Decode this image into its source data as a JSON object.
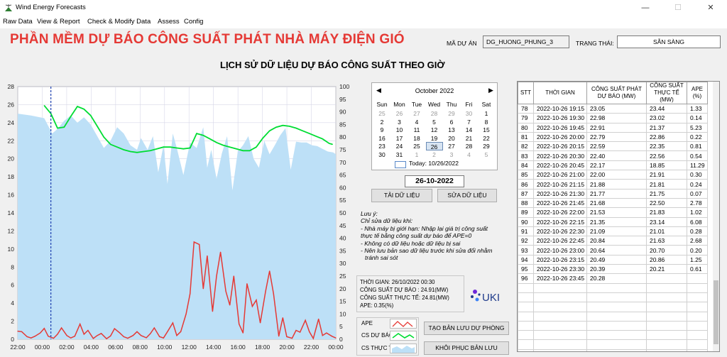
{
  "window": {
    "title": "Wind Energy Forecasts",
    "minimize_glyph": "—",
    "maximize_glyph": "☐",
    "close_glyph": "✕"
  },
  "menu": {
    "items": [
      "Raw Data",
      "View & Report",
      "Check & Modify Data",
      "Assess",
      "Config"
    ]
  },
  "header": {
    "title": "PHẦN MỀM DỰ BÁO CÔNG SUẤT PHÁT NHÀ MÁY ĐIỆN GIÓ",
    "project_label": "MÃ DỰ ÁN",
    "project_value": "DG_HUONG_PHUNG_3",
    "status_label": "TRẠNG THÁI:",
    "status_value": "SẴN SÀNG"
  },
  "chart_data": {
    "type": "line",
    "title": "LỊCH SỬ DỮ LIỆU DỰ BÁO CÔNG SUẤT THEO GIỜ",
    "x_ticks": [
      "22:00",
      "00:00",
      "02:00",
      "04:00",
      "06:00",
      "08:00",
      "10:00",
      "12:00",
      "14:00",
      "16:00",
      "18:00",
      "20:00",
      "22:00",
      "00:00"
    ],
    "x_hours": [
      0,
      24
    ],
    "y_left_range": [
      0,
      28
    ],
    "y_left_ticks": [
      0,
      2,
      4,
      6,
      8,
      10,
      12,
      14,
      16,
      18,
      20,
      22,
      24,
      26,
      28
    ],
    "y_right_range": [
      0,
      100
    ],
    "y_right_ticks": [
      0,
      5,
      10,
      15,
      20,
      25,
      30,
      35,
      40,
      45,
      50,
      55,
      60,
      65,
      70,
      75,
      80,
      85,
      90,
      95,
      100
    ],
    "cursor_hour": 2.5,
    "grid": true,
    "series": [
      {
        "name": "CS THỰC TẾ",
        "axis": "left",
        "color": "#bde0f7",
        "style": "area",
        "x": [
          0,
          1,
          2,
          2.6,
          3,
          3.5,
          4,
          4.5,
          5,
          5.5,
          6,
          6.5,
          7,
          7.5,
          8,
          8.5,
          9,
          9.3,
          9.8,
          10.2,
          10.6,
          11,
          11.3,
          11.7,
          12,
          12.5,
          13,
          13.5,
          14,
          14.3,
          14.6,
          15,
          15.4,
          15.8,
          16.2,
          16.6,
          17,
          17.4,
          17.8,
          18.2,
          18.6,
          19,
          19.4,
          19.8,
          20.2,
          20.6,
          21,
          21.4,
          21.8,
          22.2,
          22.6,
          23,
          23.4,
          23.8,
          24
        ],
        "y": [
          25.0,
          24.8,
          24.5,
          22.8,
          23.3,
          24.2,
          24.8,
          24.0,
          24.6,
          23.8,
          22.5,
          21.2,
          22.0,
          23.5,
          22.8,
          21.5,
          21.0,
          22.3,
          21.0,
          22.5,
          18.5,
          21.5,
          17.2,
          22.8,
          21.2,
          18.2,
          21.8,
          21.2,
          23.5,
          19.0,
          21.0,
          17.8,
          20.6,
          22.5,
          16.5,
          20.8,
          21.5,
          22.5,
          20.0,
          19.0,
          22.0,
          20.5,
          21.5,
          22.6,
          23.4,
          18.8,
          21.9,
          21.8,
          21.8,
          21.5,
          21.4,
          21.1,
          20.8,
          20.7,
          20.5
        ]
      },
      {
        "name": "CS DỰ BÁO",
        "axis": "left",
        "color": "#00dd33",
        "style": "line",
        "x": [
          2,
          2.5,
          3,
          3.5,
          4,
          4.5,
          5,
          5.5,
          6,
          6.5,
          7,
          7.5,
          8,
          8.5,
          9,
          9.5,
          10,
          10.5,
          11,
          11.5,
          12,
          12.5,
          13,
          13.5,
          14,
          14.5,
          15,
          15.5,
          16,
          16.5,
          17,
          17.5,
          18,
          18.5,
          19,
          19.5,
          20,
          20.5,
          21,
          21.5,
          22,
          22.5,
          23,
          23.5,
          23.75
        ],
        "y": [
          25.9,
          25.0,
          23.4,
          23.5,
          24.7,
          25.8,
          25.5,
          24.8,
          23.6,
          22.4,
          21.6,
          21.3,
          21.0,
          20.8,
          20.7,
          20.8,
          20.9,
          21.1,
          21.3,
          21.3,
          21.2,
          21.1,
          21.2,
          22.8,
          22.6,
          22.2,
          21.8,
          21.5,
          21.3,
          21.1,
          20.9,
          20.9,
          21.3,
          22.3,
          23.1,
          23.5,
          23.7,
          23.6,
          23.4,
          23.1,
          22.8,
          22.5,
          22.2,
          21.7,
          21.6
        ]
      },
      {
        "name": "APE",
        "axis": "right",
        "color": "#e53935",
        "style": "line",
        "x": [
          0,
          0.3,
          0.7,
          1.0,
          1.3,
          1.7,
          2.0,
          2.3,
          2.7,
          3.0,
          3.3,
          3.7,
          4.0,
          4.3,
          4.7,
          5.0,
          5.3,
          5.7,
          6.0,
          6.3,
          6.7,
          7.0,
          7.3,
          7.7,
          8.0,
          8.3,
          8.7,
          9.0,
          9.3,
          9.7,
          10.0,
          10.3,
          10.7,
          11.0,
          11.3,
          11.7,
          12.0,
          12.3,
          12.7,
          13.0,
          13.3,
          13.7,
          14.0,
          14.3,
          14.7,
          15.0,
          15.3,
          15.7,
          16.0,
          16.3,
          16.7,
          17.0,
          17.3,
          17.7,
          18.0,
          18.3,
          18.7,
          19.0,
          19.3,
          19.7,
          20.0,
          20.3,
          20.7,
          21.0,
          21.3,
          21.7,
          22.0,
          22.3,
          22.7,
          23.0,
          23.3,
          23.7,
          24.0
        ],
        "y": [
          3.2,
          3.0,
          1.0,
          0.5,
          1.2,
          2.5,
          4.3,
          1.2,
          0.4,
          2.0,
          4.5,
          1.5,
          0.5,
          1.2,
          6.0,
          2.0,
          3.5,
          0.3,
          1.5,
          2.3,
          0.2,
          1.3,
          4.2,
          2.5,
          1.0,
          0.4,
          1.5,
          3.0,
          1.5,
          0.6,
          2.2,
          4.5,
          1.0,
          0.5,
          3.0,
          6.5,
          1.5,
          3.0,
          10.0,
          18.0,
          38.5,
          37.5,
          20.0,
          33.0,
          11.0,
          25.0,
          34.5,
          19.0,
          13.5,
          25.0,
          6.0,
          2.5,
          22.0,
          13.0,
          15.5,
          6.5,
          19.0,
          27.0,
          18.0,
          1.2,
          8.5,
          1.0,
          0.4,
          3.5,
          2.8,
          7.5,
          3.0,
          0.3,
          8.0,
          1.5,
          2.5,
          1.2,
          0.5
        ]
      }
    ]
  },
  "calendar": {
    "month_title": "October 2022",
    "prev_glyph": "◀",
    "next_glyph": "▶",
    "weekdays": [
      "Sun",
      "Mon",
      "Tue",
      "Wed",
      "Thu",
      "Fri",
      "Sat"
    ],
    "weeks": [
      [
        "25",
        "26",
        "27",
        "28",
        "29",
        "30",
        "1"
      ],
      [
        "2",
        "3",
        "4",
        "5",
        "6",
        "7",
        "8"
      ],
      [
        "9",
        "10",
        "11",
        "12",
        "13",
        "14",
        "15"
      ],
      [
        "16",
        "17",
        "18",
        "19",
        "20",
        "21",
        "22"
      ],
      [
        "23",
        "24",
        "25",
        "26",
        "27",
        "28",
        "29"
      ],
      [
        "30",
        "31",
        "1",
        "2",
        "3",
        "4",
        "5"
      ]
    ],
    "selected_day": "26",
    "today_text": "Today: 10/26/2022"
  },
  "controls": {
    "date_value": "26-10-2022",
    "load_button": "TẢI DỮ LIỆU",
    "edit_button": "SỬA DỮ LIỆU",
    "backup_button": "TẠO BẢN LƯU DỰ PHÒNG",
    "restore_button": "KHÔI PHỤC BẢN LƯU"
  },
  "notes": {
    "lines": [
      "Lưu ý:",
      "Chỉ sửa dữ liệu khi:",
      "- Nhà máy bị giới hạn: Nhập lại giá trị công suất",
      "thực tế bằng công suất dự báo để APE=0",
      "- Không có dữ liệu hoặc dữ liệu bị sai",
      "- Nên lưu bản sao dữ liệu trước khi sửa đổi nhằm",
      "tránh sai sót"
    ]
  },
  "info_box": {
    "lines": [
      "THỜI GIAN: 26/10/2022 00:30",
      "CÔNG SUẤT DỰ BÁO : 24.91(MW)",
      "CÔNG SUẤT THỰC TẾ: 24.81(MW)",
      "APE: 0.35(%)"
    ]
  },
  "logo": {
    "text": "UKI",
    "colors": [
      "#1e3a8a",
      "#6d28d9"
    ]
  },
  "legend": {
    "items": [
      "APE",
      "CS DỰ BÁO",
      "CS THỰC TẾ"
    ]
  },
  "table": {
    "headers": [
      "STT",
      "THỜI GIAN",
      "CÔNG SUẤT PHÁT DỰ BÁO (MW)",
      "CÔNG SUẤT THỰC TẾ (MW)",
      "APE (%)"
    ],
    "rows": [
      [
        "78",
        "2022-10-26 19:15",
        "23.05",
        "23.44",
        "1.33"
      ],
      [
        "79",
        "2022-10-26 19:30",
        "22.98",
        "23.02",
        "0.14"
      ],
      [
        "80",
        "2022-10-26 19:45",
        "22.91",
        "21.37",
        "5.23"
      ],
      [
        "81",
        "2022-10-26 20:00",
        "22.79",
        "22.86",
        "0.22"
      ],
      [
        "82",
        "2022-10-26 20:15",
        "22.59",
        "22.35",
        "0.81"
      ],
      [
        "83",
        "2022-10-26 20:30",
        "22.40",
        "22.56",
        "0.54"
      ],
      [
        "84",
        "2022-10-26 20:45",
        "22.17",
        "18.85",
        "11.29"
      ],
      [
        "85",
        "2022-10-26 21:00",
        "22.00",
        "21.91",
        "0.30"
      ],
      [
        "86",
        "2022-10-26 21:15",
        "21.88",
        "21.81",
        "0.24"
      ],
      [
        "87",
        "2022-10-26 21:30",
        "21.77",
        "21.75",
        "0.07"
      ],
      [
        "88",
        "2022-10-26 21:45",
        "21.68",
        "22.50",
        "2.78"
      ],
      [
        "89",
        "2022-10-26 22:00",
        "21.53",
        "21.83",
        "1.02"
      ],
      [
        "90",
        "2022-10-26 22:15",
        "21.35",
        "23.14",
        "6.08"
      ],
      [
        "91",
        "2022-10-26 22:30",
        "21.09",
        "21.01",
        "0.28"
      ],
      [
        "92",
        "2022-10-26 22:45",
        "20.84",
        "21.63",
        "2.68"
      ],
      [
        "93",
        "2022-10-26 23:00",
        "20.64",
        "20.70",
        "0.20"
      ],
      [
        "94",
        "2022-10-26 23:15",
        "20.49",
        "20.86",
        "1.25"
      ],
      [
        "95",
        "2022-10-26 23:30",
        "20.39",
        "20.21",
        "0.61"
      ],
      [
        "96",
        "2022-10-26 23:45",
        "20.28",
        "",
        ""
      ]
    ]
  }
}
